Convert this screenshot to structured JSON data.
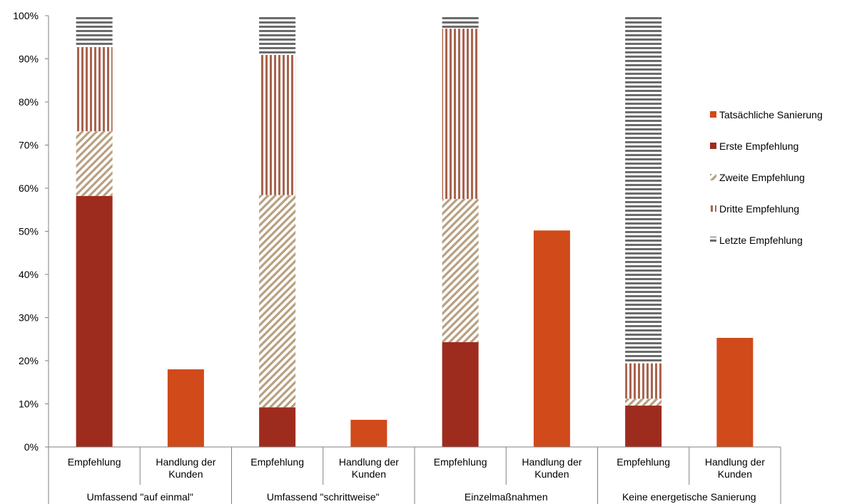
{
  "chart_data": {
    "type": "bar",
    "stacked": true,
    "ylim": [
      0,
      100
    ],
    "yticks": [
      "0%",
      "10%",
      "20%",
      "30%",
      "40%",
      "50%",
      "60%",
      "70%",
      "80%",
      "90%",
      "100%"
    ],
    "groups": [
      "Umfassend \"auf einmal\"",
      "Umfassend \"schrittweise\"",
      "Einzelmaßnahmen",
      "Keine energetische Sanierung"
    ],
    "subcategories": [
      [
        "Empfehlung"
      ],
      [
        "Handlung der",
        "Kunden"
      ]
    ],
    "legend_position": "right",
    "series": [
      {
        "name": "Tatsächliche Sanierung",
        "color": "#D04A1A",
        "pattern": "solid",
        "values": [
          null,
          18,
          null,
          6.3,
          null,
          50.2,
          null,
          25.3
        ]
      },
      {
        "name": "Erste Empfehlung",
        "color": "#9E2C1E",
        "pattern": "solid",
        "values": [
          58.2,
          null,
          9.2,
          null,
          24.3,
          null,
          9.6,
          null
        ]
      },
      {
        "name": "Zweite Empfehlung",
        "color": "#B8A080",
        "pattern": "diagonal",
        "values": [
          15,
          null,
          49.2,
          null,
          33.2,
          null,
          1.6,
          null
        ]
      },
      {
        "name": "Dritte Empfehlung",
        "color": "#A8644E",
        "pattern": "vertical",
        "values": [
          19.5,
          null,
          32.5,
          null,
          39.5,
          null,
          8.2,
          null
        ]
      },
      {
        "name": "Letzte Empfehlung",
        "color": "#6B6B6B",
        "pattern": "horizontal",
        "values": [
          7.3,
          null,
          9.1,
          null,
          3,
          null,
          80.6,
          null
        ]
      }
    ]
  }
}
